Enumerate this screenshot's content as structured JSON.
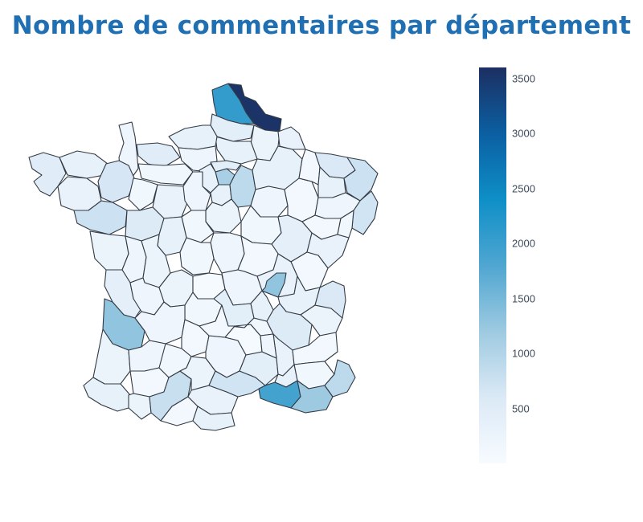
{
  "title": "Nombre de commentaires par département",
  "colors": {
    "title": "#1f6fb2",
    "outline": "#333a44"
  },
  "legend": {
    "scale": "Blues",
    "stops": [
      "#f7fbff",
      "#dbe9f6",
      "#9ecae1",
      "#4fa6d1",
      "#0e8fc7",
      "#0b5fa2",
      "#1c2f62"
    ],
    "min": 0,
    "max": 3600,
    "ticks": [
      "500",
      "1000",
      "1500",
      "2000",
      "2500",
      "3000",
      "3500"
    ]
  },
  "chart_data": {
    "type": "choropleth",
    "title": "Nombre de commentaires par département",
    "value_range": [
      0,
      3600
    ],
    "regions": [
      {
        "name": "Nord",
        "value": 3550
      },
      {
        "name": "Pas-de-Calais",
        "value": 2050
      },
      {
        "name": "Somme",
        "value": 450
      },
      {
        "name": "Aisne",
        "value": 250
      },
      {
        "name": "Oise",
        "value": 350
      },
      {
        "name": "Seine-Maritime",
        "value": 350
      },
      {
        "name": "Eure",
        "value": 200
      },
      {
        "name": "Calvados",
        "value": 500
      },
      {
        "name": "Manche",
        "value": 200
      },
      {
        "name": "Orne",
        "value": 150
      },
      {
        "name": "Finistère",
        "value": 500
      },
      {
        "name": "Côtes-d'Armor",
        "value": 350
      },
      {
        "name": "Morbihan",
        "value": 300
      },
      {
        "name": "Ille-et-Vilaine",
        "value": 650
      },
      {
        "name": "Mayenne",
        "value": 150
      },
      {
        "name": "Sarthe",
        "value": 300
      },
      {
        "name": "Loire-Atlantique",
        "value": 750
      },
      {
        "name": "Maine-et-Loire",
        "value": 550
      },
      {
        "name": "Vendée",
        "value": 250
      },
      {
        "name": "Paris",
        "value": 1100
      },
      {
        "name": "Val-d'Oise",
        "value": 450
      },
      {
        "name": "Yvelines",
        "value": 350
      },
      {
        "name": "Essonne",
        "value": 350
      },
      {
        "name": "Seine-et-Marne",
        "value": 900
      },
      {
        "name": "Eure-et-Loir",
        "value": 200
      },
      {
        "name": "Loiret",
        "value": 250
      },
      {
        "name": "Loir-et-Cher",
        "value": 150
      },
      {
        "name": "Indre-et-Loire",
        "value": 350
      },
      {
        "name": "Cher",
        "value": 200
      },
      {
        "name": "Indre",
        "value": 150
      },
      {
        "name": "Marne",
        "value": 350
      },
      {
        "name": "Ardennes",
        "value": 300
      },
      {
        "name": "Aube",
        "value": 200
      },
      {
        "name": "Haute-Marne",
        "value": 100
      },
      {
        "name": "Meuse",
        "value": 100
      },
      {
        "name": "Moselle",
        "value": 600
      },
      {
        "name": "Meurthe-et-Moselle",
        "value": 350
      },
      {
        "name": "Bas-Rhin",
        "value": 750
      },
      {
        "name": "Haut-Rhin",
        "value": 700
      },
      {
        "name": "Vosges",
        "value": 200
      },
      {
        "name": "Yonne",
        "value": 150
      },
      {
        "name": "Côte-d'Or",
        "value": 400
      },
      {
        "name": "Haute-Saône",
        "value": 100
      },
      {
        "name": "Doubs",
        "value": 300
      },
      {
        "name": "Jura",
        "value": 100
      },
      {
        "name": "Territoire de Belfort",
        "value": 150
      },
      {
        "name": "Nièvre",
        "value": 100
      },
      {
        "name": "Saône-et-Loire",
        "value": 300
      },
      {
        "name": "Deux-Sèvres",
        "value": 200
      },
      {
        "name": "Vienne",
        "value": 250
      },
      {
        "name": "Charente-Maritime",
        "value": 400
      },
      {
        "name": "Charente",
        "value": 200
      },
      {
        "name": "Haute-Vienne",
        "value": 250
      },
      {
        "name": "Creuse",
        "value": 50
      },
      {
        "name": "Corrèze",
        "value": 150
      },
      {
        "name": "Gironde",
        "value": 1300
      },
      {
        "name": "Dordogne",
        "value": 200
      },
      {
        "name": "Landes",
        "value": 250
      },
      {
        "name": "Lot-et-Garonne",
        "value": 200
      },
      {
        "name": "Lot",
        "value": 100
      },
      {
        "name": "Pyrénées-Atlantiques",
        "value": 350
      },
      {
        "name": "Gers",
        "value": 100
      },
      {
        "name": "Hautes-Pyrénées",
        "value": 250
      },
      {
        "name": "Haute-Garonne",
        "value": 800
      },
      {
        "name": "Ariège",
        "value": 100
      },
      {
        "name": "Tarn-et-Garonne",
        "value": 150
      },
      {
        "name": "Tarn",
        "value": 250
      },
      {
        "name": "Aude",
        "value": 300
      },
      {
        "name": "Pyrénées-Orientales",
        "value": 350
      },
      {
        "name": "Aveyron",
        "value": 200
      },
      {
        "name": "Hérault",
        "value": 700
      },
      {
        "name": "Gard",
        "value": 450
      },
      {
        "name": "Lozère",
        "value": 50
      },
      {
        "name": "Allier",
        "value": 200
      },
      {
        "name": "Puy-de-Dôme",
        "value": 450
      },
      {
        "name": "Cantal",
        "value": 100
      },
      {
        "name": "Haute-Loire",
        "value": 150
      },
      {
        "name": "Loire",
        "value": 350
      },
      {
        "name": "Rhône",
        "value": 1300
      },
      {
        "name": "Ain",
        "value": 350
      },
      {
        "name": "Isère",
        "value": 550
      },
      {
        "name": "Savoie",
        "value": 250
      },
      {
        "name": "Haute-Savoie",
        "value": 600
      },
      {
        "name": "Drôme",
        "value": 300
      },
      {
        "name": "Ardèche",
        "value": 200
      },
      {
        "name": "Hautes-Alpes",
        "value": 100
      },
      {
        "name": "Alpes-de-Haute-Provence",
        "value": 150
      },
      {
        "name": "Vaucluse",
        "value": 350
      },
      {
        "name": "Bouches-du-Rhône",
        "value": 1900
      },
      {
        "name": "Var",
        "value": 1200
      },
      {
        "name": "Alpes-Maritimes",
        "value": 900
      }
    ]
  }
}
